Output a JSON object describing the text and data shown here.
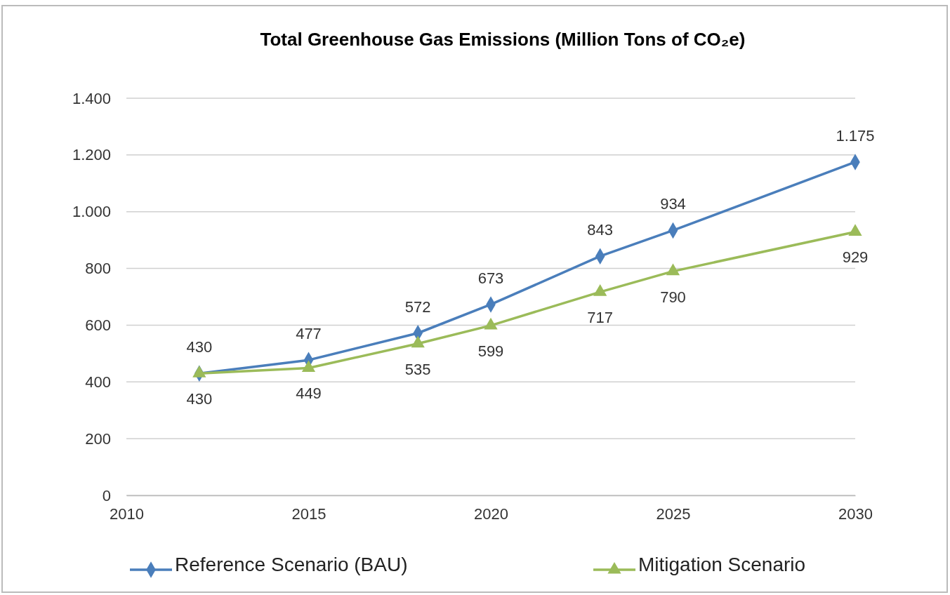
{
  "chart_data": {
    "type": "line",
    "title": "Total Greenhouse Gas Emissions (Million Tons of CO₂e)",
    "x": [
      2012,
      2015,
      2018,
      2020,
      2023,
      2025,
      2030
    ],
    "xlim": [
      2010,
      2030
    ],
    "xticks": [
      2010,
      2015,
      2020,
      2025,
      2030
    ],
    "ylim": [
      0,
      1400
    ],
    "yticks": [
      0,
      200,
      400,
      600,
      800,
      {
        "value": 1000,
        "label": "1.000"
      },
      {
        "value": 1200,
        "label": "1.200"
      },
      {
        "value": 1400,
        "label": "1.400"
      }
    ],
    "grid": "y",
    "legend": "bottom",
    "series": [
      {
        "name": "Reference Scenario (BAU)",
        "color": "#4a7ebb",
        "marker": "diamond",
        "values": [
          430,
          477,
          572,
          673,
          843,
          934,
          1175
        ],
        "value_labels": [
          "430",
          "477",
          "572",
          "673",
          "843",
          "934",
          "1.175"
        ]
      },
      {
        "name": "Mitigation Scenario",
        "color": "#9bbb59",
        "marker": "triangle",
        "values": [
          430,
          449,
          535,
          599,
          717,
          790,
          929
        ],
        "value_labels": [
          "430",
          "449",
          "535",
          "599",
          "717",
          "790",
          "929"
        ]
      }
    ]
  }
}
